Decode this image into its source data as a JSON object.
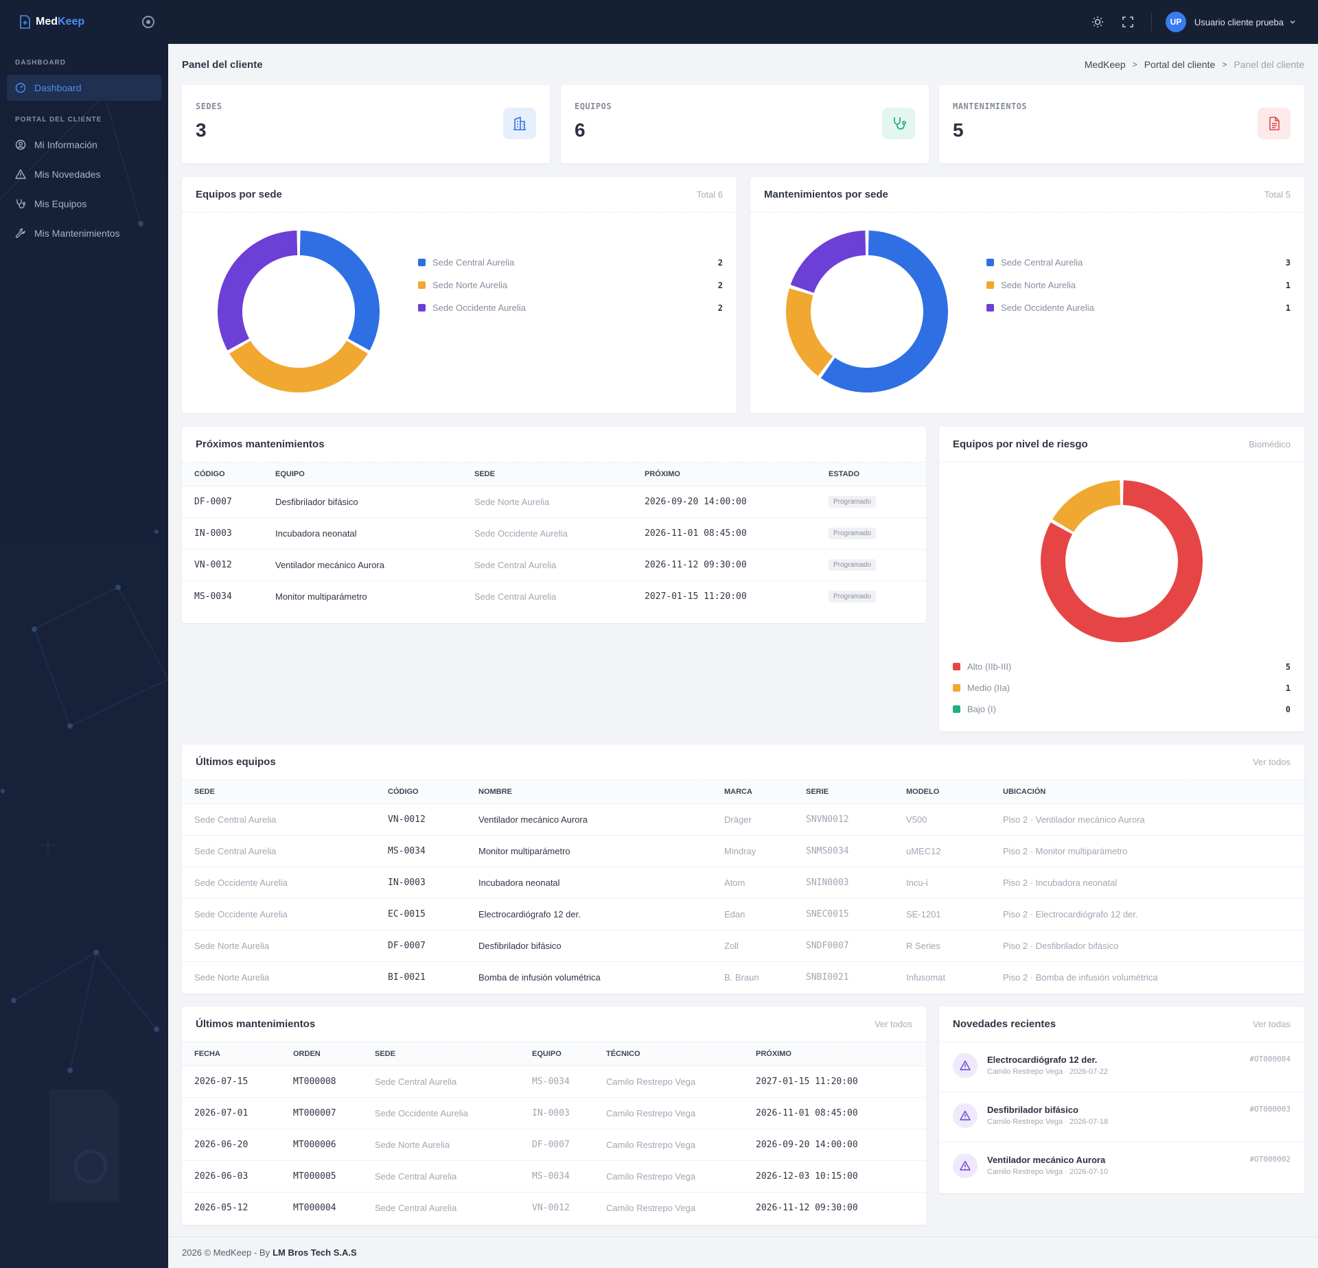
{
  "brand": {
    "name_a": "Med",
    "name_b": "Keep"
  },
  "sidebar": {
    "section_dashboard": "DASHBOARD",
    "dashboard_label": "Dashboard",
    "section_portal": "PORTAL DEL CLIENTE",
    "items": [
      {
        "label": "Mi Información",
        "icon": "user-circle-icon"
      },
      {
        "label": "Mis Novedades",
        "icon": "warning-icon"
      },
      {
        "label": "Mis Equipos",
        "icon": "stethoscope-icon"
      },
      {
        "label": "Mis Mantenimientos",
        "icon": "wrench-icon"
      }
    ]
  },
  "topbar": {
    "avatar_initials": "UP",
    "user_name": "Usuario cliente prueba"
  },
  "page": {
    "title": "Panel del cliente",
    "breadcrumb": [
      "MedKeep",
      "Portal del cliente",
      "Panel del cliente"
    ]
  },
  "stats": [
    {
      "label": "SEDES",
      "value": "3",
      "icon": "building-icon",
      "bg": "#e6effc",
      "color": "#2f6fdc"
    },
    {
      "label": "EQUIPOS",
      "value": "6",
      "icon": "stethoscope-icon",
      "bg": "#e3f6ef",
      "color": "#1fab7c"
    },
    {
      "label": "MANTENIMIENTOS",
      "value": "5",
      "icon": "document-icon",
      "bg": "#fde9e9",
      "color": "#e44545"
    }
  ],
  "colors": {
    "blue": "#2f6fe4",
    "orange": "#f0a830",
    "purple": "#6c3fd6",
    "red": "#e64545",
    "green": "#1fb37a"
  },
  "chart_data": [
    {
      "type": "pie",
      "title": "Equipos por sede",
      "meta": "Total 6",
      "categories": [
        "Sede Central Aurelia",
        "Sede Norte Aurelia",
        "Sede Occidente Aurelia"
      ],
      "values": [
        2,
        2,
        2
      ],
      "colors": [
        "#2f6fe4",
        "#f0a830",
        "#6c3fd6"
      ]
    },
    {
      "type": "pie",
      "title": "Mantenimientos por sede",
      "meta": "Total 5",
      "categories": [
        "Sede Central Aurelia",
        "Sede Norte Aurelia",
        "Sede Occidente Aurelia"
      ],
      "values": [
        3,
        1,
        1
      ],
      "colors": [
        "#2f6fe4",
        "#f0a830",
        "#6c3fd6"
      ]
    },
    {
      "type": "pie",
      "title": "Equipos por nivel de riesgo",
      "meta": "Biomédico",
      "categories": [
        "Alto (IIb-III)",
        "Medio (IIa)",
        "Bajo (I)"
      ],
      "values": [
        5,
        1,
        0
      ],
      "colors": [
        "#e64545",
        "#f0a830",
        "#1fb37a"
      ]
    }
  ],
  "proximos": {
    "title": "Próximos mantenimientos",
    "headers": [
      "CÓDIGO",
      "EQUIPO",
      "SEDE",
      "PRÓXIMO",
      "ESTADO"
    ],
    "rows": [
      [
        "DF-0007",
        "Desfibrilador bifásico",
        "Sede Norte Aurelia",
        "2026-09-20 14:00:00",
        "Programado"
      ],
      [
        "IN-0003",
        "Incubadora neonatal",
        "Sede Occidente Aurelia",
        "2026-11-01 08:45:00",
        "Programado"
      ],
      [
        "VN-0012",
        "Ventilador mecánico Aurora",
        "Sede Central Aurelia",
        "2026-11-12 09:30:00",
        "Programado"
      ],
      [
        "MS-0034",
        "Monitor multiparámetro",
        "Sede Central Aurelia",
        "2027-01-15 11:20:00",
        "Programado"
      ]
    ]
  },
  "ultimos_equipos": {
    "title": "Últimos equipos",
    "link": "Ver todos",
    "headers": [
      "SEDE",
      "CÓDIGO",
      "NOMBRE",
      "MARCA",
      "SERIE",
      "MODELO",
      "UBICACIÓN"
    ],
    "rows": [
      [
        "Sede Central Aurelia",
        "VN-0012",
        "Ventilador mecánico Aurora",
        "Dräger",
        "SNVN0012",
        "V500",
        "Piso 2 · Ventilador mecánico Aurora"
      ],
      [
        "Sede Central Aurelia",
        "MS-0034",
        "Monitor multiparámetro",
        "Mindray",
        "SNMS0034",
        "uMEC12",
        "Piso 2 · Monitor multiparámetro"
      ],
      [
        "Sede Occidente Aurelia",
        "IN-0003",
        "Incubadora neonatal",
        "Atom",
        "SNIN0003",
        "Incu-i",
        "Piso 2 · Incubadora neonatal"
      ],
      [
        "Sede Occidente Aurelia",
        "EC-0015",
        "Electrocardiógrafo 12 der.",
        "Edan",
        "SNEC0015",
        "SE-1201",
        "Piso 2 · Electrocardiógrafo 12 der."
      ],
      [
        "Sede Norte Aurelia",
        "DF-0007",
        "Desfibrilador bifásico",
        "Zoll",
        "SNDF0007",
        "R Series",
        "Piso 2 · Desfibrilador bifásico"
      ],
      [
        "Sede Norte Aurelia",
        "BI-0021",
        "Bomba de infusión volumétrica",
        "B. Braun",
        "SNBI0021",
        "Infusomat",
        "Piso 2 · Bomba de infusión volumétrica"
      ]
    ]
  },
  "ultimos_mant": {
    "title": "Últimos mantenimientos",
    "link": "Ver todos",
    "headers": [
      "FECHA",
      "ORDEN",
      "SEDE",
      "EQUIPO",
      "TÉCNICO",
      "PRÓXIMO"
    ],
    "rows": [
      [
        "2026-07-15",
        "MT000008",
        "Sede Central Aurelia",
        "MS-0034",
        "Camilo Restrepo Vega",
        "2027-01-15 11:20:00"
      ],
      [
        "2026-07-01",
        "MT000007",
        "Sede Occidente Aurelia",
        "IN-0003",
        "Camilo Restrepo Vega",
        "2026-11-01 08:45:00"
      ],
      [
        "2026-06-20",
        "MT000006",
        "Sede Norte Aurelia",
        "DF-0007",
        "Camilo Restrepo Vega",
        "2026-09-20 14:00:00"
      ],
      [
        "2026-06-03",
        "MT000005",
        "Sede Central Aurelia",
        "MS-0034",
        "Camilo Restrepo Vega",
        "2026-12-03 10:15:00"
      ],
      [
        "2026-05-12",
        "MT000004",
        "Sede Central Aurelia",
        "VN-0012",
        "Camilo Restrepo Vega",
        "2026-11-12 09:30:00"
      ]
    ]
  },
  "novedades": {
    "title": "Novedades recientes",
    "link": "Ver todas",
    "items": [
      {
        "title": "Electrocardiógrafo 12 der.",
        "sub": "Camilo Restrepo Vega · 2026-07-22",
        "code": "#OT000004"
      },
      {
        "title": "Desfibrilador bifásico",
        "sub": "Camilo Restrepo Vega · 2026-07-18",
        "code": "#OT000003"
      },
      {
        "title": "Ventilador mecánico Aurora",
        "sub": "Camilo Restrepo Vega · 2026-07-10",
        "code": "#OT000002"
      }
    ]
  },
  "footer": {
    "text": "2026 © MedKeep - By",
    "company": "LM Bros Tech S.A.S"
  }
}
